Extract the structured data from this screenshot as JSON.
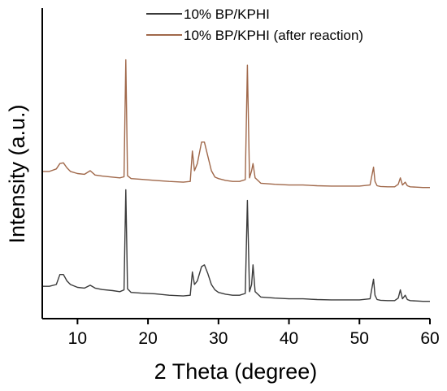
{
  "chart_data": {
    "type": "line",
    "title": "",
    "xlabel": "2 Theta (degree)",
    "ylabel": "Intensity (a.u.)",
    "xlim": [
      5,
      60
    ],
    "x_ticks": [
      10,
      20,
      30,
      40,
      50,
      60
    ],
    "y_ticks_shown": false,
    "grid": false,
    "legend_position": "top-center",
    "series": [
      {
        "name": "10% BP/KPHI",
        "color": "#3a3a3a",
        "x": [
          5,
          6,
          7,
          7.5,
          8,
          8.5,
          9,
          10,
          11,
          11.8,
          12.5,
          13.5,
          15,
          16,
          16.6,
          16.85,
          17.1,
          17.6,
          19,
          21,
          23,
          25,
          26,
          26.3,
          26.6,
          27,
          27.6,
          28,
          28.5,
          29,
          29.5,
          30,
          31,
          32,
          33,
          33.8,
          34.1,
          34.4,
          34.7,
          34.9,
          35.2,
          36,
          38,
          40,
          42,
          44,
          46,
          48,
          50,
          51.5,
          52,
          52.2,
          52.5,
          53,
          54,
          55,
          55.5,
          55.8,
          56.1,
          56.5,
          56.8,
          57.2,
          58,
          59,
          60
        ],
        "values": [
          0.45,
          0.45,
          0.5,
          0.78,
          0.78,
          0.6,
          0.5,
          0.42,
          0.4,
          0.48,
          0.4,
          0.36,
          0.33,
          0.3,
          0.35,
          3.15,
          0.38,
          0.28,
          0.26,
          0.24,
          0.2,
          0.18,
          0.2,
          0.85,
          0.5,
          0.6,
          1.0,
          1.05,
          0.8,
          0.5,
          0.35,
          0.28,
          0.23,
          0.2,
          0.2,
          0.25,
          2.85,
          0.3,
          0.5,
          1.05,
          0.3,
          0.15,
          0.12,
          0.1,
          0.1,
          0.08,
          0.07,
          0.07,
          0.07,
          0.1,
          0.65,
          0.2,
          0.08,
          0.06,
          0.05,
          0.05,
          0.12,
          0.35,
          0.1,
          0.2,
          0.08,
          0.05,
          0.04,
          0.03,
          0.03
        ]
      },
      {
        "name": "10% BP/KPHI (after reaction)",
        "color": "#a0684a",
        "x": [
          5,
          6,
          7,
          7.5,
          8,
          8.5,
          9,
          10,
          11,
          11.8,
          12.5,
          13.5,
          15,
          16,
          16.6,
          16.85,
          17.1,
          17.6,
          19,
          21,
          23,
          25,
          26,
          26.3,
          26.6,
          27,
          27.6,
          28,
          28.5,
          29,
          29.5,
          30,
          31,
          32,
          33,
          33.8,
          34.1,
          34.4,
          34.7,
          34.9,
          35.2,
          36,
          38,
          40,
          42,
          44,
          46,
          48,
          50,
          51.5,
          52,
          52.2,
          52.5,
          53,
          54,
          55,
          55.5,
          55.8,
          56.1,
          56.5,
          56.8,
          57.2,
          58,
          59,
          60
        ],
        "values": [
          0.48,
          0.48,
          0.55,
          0.7,
          0.72,
          0.58,
          0.48,
          0.42,
          0.4,
          0.5,
          0.38,
          0.35,
          0.32,
          0.3,
          0.33,
          3.6,
          0.36,
          0.28,
          0.26,
          0.23,
          0.2,
          0.18,
          0.2,
          1.05,
          0.5,
          0.7,
          1.3,
          1.3,
          0.9,
          0.5,
          0.32,
          0.28,
          0.23,
          0.2,
          0.2,
          0.25,
          3.45,
          0.3,
          0.5,
          0.7,
          0.3,
          0.15,
          0.12,
          0.1,
          0.1,
          0.08,
          0.07,
          0.07,
          0.07,
          0.1,
          0.6,
          0.2,
          0.08,
          0.06,
          0.05,
          0.05,
          0.12,
          0.3,
          0.1,
          0.18,
          0.08,
          0.05,
          0.04,
          0.03,
          0.03
        ]
      }
    ]
  }
}
